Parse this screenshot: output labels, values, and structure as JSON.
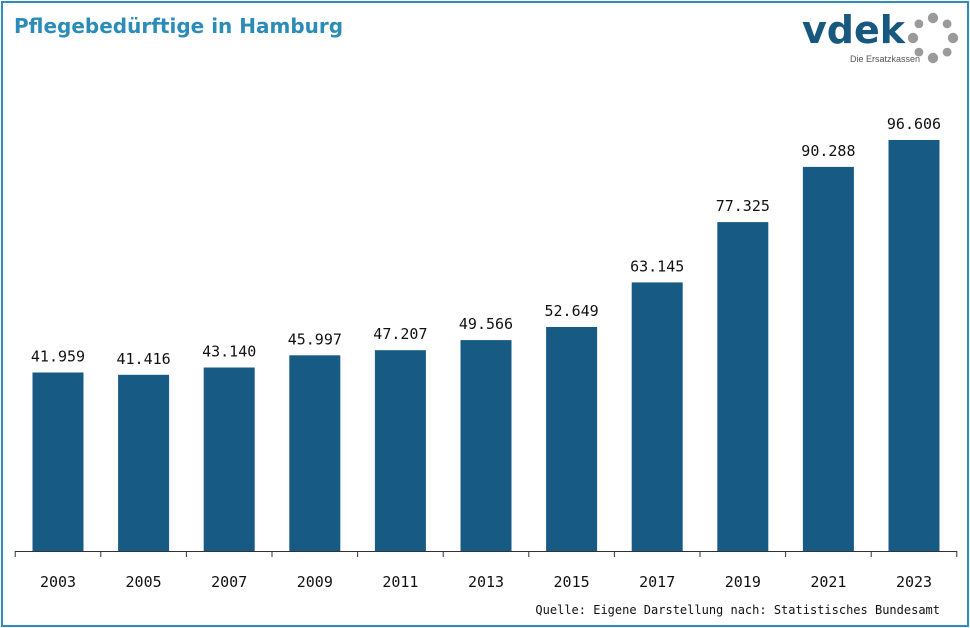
{
  "title": "Pflegebedürftige in Hamburg",
  "logo": {
    "wordmark": "vdek",
    "subtitle": "Die Ersatzkassen",
    "colors": {
      "wordmark": "#17587f",
      "ring": "#9a9a9a"
    }
  },
  "source": "Quelle: Eigene Darstellung nach: Statistisches Bundesamt",
  "colors": {
    "bar": "#175a84",
    "title": "#2b8cb8",
    "frame": "#2d8fb9"
  },
  "chart_data": {
    "type": "bar",
    "title": "Pflegebedürftige in Hamburg",
    "xlabel": "",
    "ylabel": "",
    "categories": [
      "2003",
      "2005",
      "2007",
      "2009",
      "2011",
      "2013",
      "2015",
      "2017",
      "2019",
      "2021",
      "2023"
    ],
    "values": [
      41959,
      41416,
      43140,
      45997,
      47207,
      49566,
      52649,
      63145,
      77325,
      90288,
      96606
    ],
    "value_labels": [
      "41.959",
      "41.416",
      "43.140",
      "45.997",
      "47.207",
      "49.566",
      "52.649",
      "63.145",
      "77.325",
      "90.288",
      "96.606"
    ],
    "ylim": [
      0,
      100000
    ],
    "grid": false,
    "legend": "none"
  }
}
